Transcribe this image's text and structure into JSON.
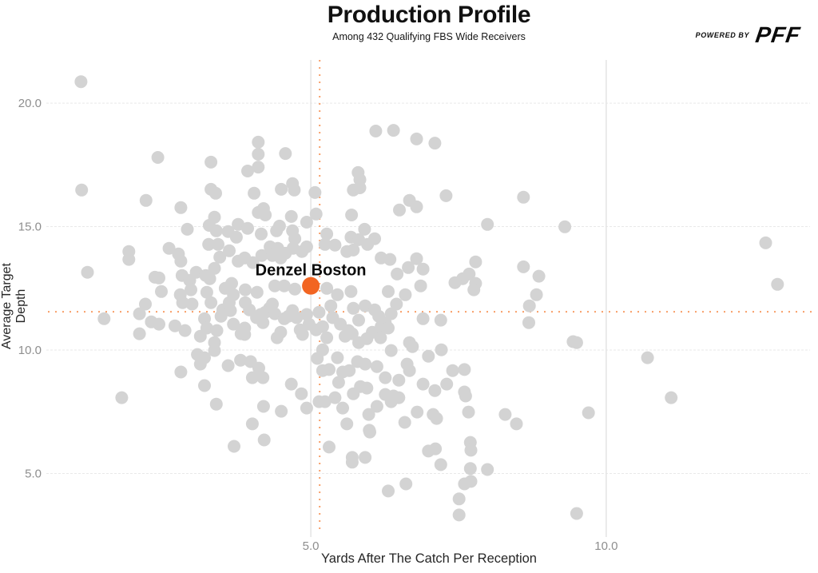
{
  "header": {
    "title": "Production Profile",
    "subtitle": "Among 432 Qualifying FBS Wide Receivers",
    "logo": {
      "powered_by": "POWERED BY",
      "brand": "PFF"
    }
  },
  "colors": {
    "background": "#ffffff",
    "point": "#d3d3d3",
    "highlight": "#f26522",
    "reference_line": "#f89f68",
    "grid": "#e9e9e9",
    "grid_vertical": "#e4e4e4",
    "tick_text": "#8e8e8e",
    "axis_label": "#262626",
    "title_text": "#111111"
  },
  "chart_data": {
    "type": "scatter",
    "title": "Production Profile",
    "subtitle": "Among 432 Qualifying FBS Wide Receivers",
    "xlabel": "Yards After The Catch Per Reception",
    "ylabel": "Average Target Depth",
    "xlim": [
      0.55,
      13.45
    ],
    "ylim": [
      2.75,
      21.75
    ],
    "grid": true,
    "legend": "none",
    "x_ticks": [
      5.0,
      10.0
    ],
    "x_tick_labels": [
      "5.0",
      "10.0"
    ],
    "y_ticks": [
      5.0,
      10.0,
      15.0,
      20.0
    ],
    "y_tick_labels": [
      "5.0",
      "10.0",
      "15.0",
      "20.0"
    ],
    "reference_lines": {
      "x": 5.15,
      "y": 11.55
    },
    "highlight": {
      "label": "Denzel Boston",
      "x": 5.0,
      "y": 12.6
    },
    "points": [
      [
        1.11,
        20.87
      ],
      [
        2.41,
        17.8
      ],
      [
        3.31,
        17.61
      ],
      [
        4.11,
        18.42
      ],
      [
        4.11,
        17.93
      ],
      [
        3.93,
        17.25
      ],
      [
        4.11,
        17.41
      ],
      [
        4.57,
        17.96
      ],
      [
        1.12,
        16.48
      ],
      [
        2.21,
        16.06
      ],
      [
        2.8,
        15.77
      ],
      [
        3.31,
        16.51
      ],
      [
        3.39,
        16.35
      ],
      [
        4.04,
        16.35
      ],
      [
        4.5,
        16.51
      ],
      [
        4.69,
        16.74
      ],
      [
        4.72,
        16.48
      ],
      [
        2.91,
        14.89
      ],
      [
        3.28,
        15.05
      ],
      [
        3.37,
        15.38
      ],
      [
        3.4,
        14.83
      ],
      [
        3.6,
        14.8
      ],
      [
        3.77,
        15.09
      ],
      [
        3.93,
        14.93
      ],
      [
        4.11,
        15.57
      ],
      [
        4.2,
        15.73
      ],
      [
        4.23,
        15.47
      ],
      [
        4.42,
        14.83
      ],
      [
        4.47,
        15.02
      ],
      [
        4.67,
        15.41
      ],
      [
        4.93,
        15.18
      ],
      [
        3.27,
        14.28
      ],
      [
        3.43,
        14.28
      ],
      [
        3.62,
        14.02
      ],
      [
        3.74,
        14.57
      ],
      [
        4.16,
        14.7
      ],
      [
        4.31,
        14.18
      ],
      [
        4.44,
        14.12
      ],
      [
        4.69,
        14.83
      ],
      [
        4.73,
        14.51
      ],
      [
        4.85,
        13.99
      ],
      [
        1.92,
        13.99
      ],
      [
        1.92,
        13.67
      ],
      [
        2.6,
        14.12
      ],
      [
        2.76,
        13.89
      ],
      [
        2.8,
        13.6
      ],
      [
        1.22,
        13.15
      ],
      [
        2.36,
        12.95
      ],
      [
        2.43,
        12.92
      ],
      [
        2.82,
        13.02
      ],
      [
        2.95,
        12.82
      ],
      [
        3.06,
        13.15
      ],
      [
        3.22,
        13.02
      ],
      [
        3.29,
        12.89
      ],
      [
        3.37,
        13.31
      ],
      [
        3.46,
        13.76
      ],
      [
        3.66,
        12.7
      ],
      [
        3.77,
        13.6
      ],
      [
        3.88,
        13.73
      ],
      [
        4.02,
        13.54
      ],
      [
        4.17,
        13.83
      ],
      [
        4.35,
        13.83
      ],
      [
        4.49,
        13.73
      ],
      [
        4.57,
        13.92
      ],
      [
        4.7,
        14.12
      ],
      [
        4.93,
        14.18
      ],
      [
        2.47,
        12.37
      ],
      [
        2.79,
        12.24
      ],
      [
        2.97,
        12.44
      ],
      [
        3.24,
        12.34
      ],
      [
        3.55,
        12.5
      ],
      [
        3.69,
        12.24
      ],
      [
        3.89,
        12.44
      ],
      [
        4.09,
        12.34
      ],
      [
        4.39,
        12.6
      ],
      [
        4.55,
        12.6
      ],
      [
        4.73,
        12.47
      ],
      [
        6.1,
        18.87
      ],
      [
        6.4,
        18.9
      ],
      [
        6.79,
        18.55
      ],
      [
        7.1,
        18.38
      ],
      [
        5.8,
        17.19
      ],
      [
        5.83,
        16.9
      ],
      [
        5.72,
        16.48
      ],
      [
        5.83,
        16.57
      ],
      [
        5.07,
        16.38
      ],
      [
        5.09,
        15.51
      ],
      [
        5.69,
        15.47
      ],
      [
        6.67,
        16.06
      ],
      [
        6.79,
        15.8
      ],
      [
        6.5,
        15.67
      ],
      [
        7.29,
        16.25
      ],
      [
        8.6,
        16.19
      ],
      [
        7.99,
        15.09
      ],
      [
        9.3,
        14.99
      ],
      [
        5.27,
        14.7
      ],
      [
        5.91,
        14.89
      ],
      [
        5.68,
        14.57
      ],
      [
        5.81,
        14.47
      ],
      [
        5.24,
        14.28
      ],
      [
        5.41,
        14.25
      ],
      [
        6.08,
        14.51
      ],
      [
        5.96,
        14.28
      ],
      [
        5.61,
        13.99
      ],
      [
        5.72,
        14.05
      ],
      [
        6.19,
        13.73
      ],
      [
        6.34,
        13.67
      ],
      [
        6.79,
        13.7
      ],
      [
        6.9,
        13.28
      ],
      [
        6.65,
        13.34
      ],
      [
        6.46,
        13.08
      ],
      [
        7.79,
        13.57
      ],
      [
        7.57,
        12.89
      ],
      [
        7.68,
        13.08
      ],
      [
        7.79,
        12.7
      ],
      [
        8.6,
        13.37
      ],
      [
        8.86,
        12.99
      ],
      [
        8.82,
        12.24
      ],
      [
        7.76,
        12.44
      ],
      [
        7.44,
        12.73
      ],
      [
        5.27,
        12.5
      ],
      [
        5.45,
        12.24
      ],
      [
        5.68,
        12.37
      ],
      [
        6.31,
        12.37
      ],
      [
        6.6,
        12.24
      ],
      [
        6.86,
        12.6
      ],
      [
        12.7,
        14.34
      ],
      [
        12.9,
        12.66
      ],
      [
        1.5,
        11.27
      ],
      [
        2.1,
        11.47
      ],
      [
        2.2,
        11.86
      ],
      [
        2.1,
        10.66
      ],
      [
        2.3,
        11.14
      ],
      [
        2.43,
        11.05
      ],
      [
        2.7,
        10.98
      ],
      [
        2.87,
        10.79
      ],
      [
        2.83,
        11.92
      ],
      [
        2.99,
        11.86
      ],
      [
        3.13,
        10.56
      ],
      [
        3.2,
        11.27
      ],
      [
        3.24,
        10.89
      ],
      [
        3.31,
        11.92
      ],
      [
        3.41,
        10.79
      ],
      [
        3.48,
        11.37
      ],
      [
        3.51,
        11.63
      ],
      [
        3.62,
        11.92
      ],
      [
        3.64,
        11.6
      ],
      [
        3.69,
        11.05
      ],
      [
        3.82,
        10.66
      ],
      [
        3.88,
        10.89
      ],
      [
        3.89,
        11.92
      ],
      [
        3.96,
        11.63
      ],
      [
        4.08,
        11.31
      ],
      [
        4.15,
        11.44
      ],
      [
        4.19,
        11.11
      ],
      [
        4.23,
        11.53
      ],
      [
        4.3,
        11.69
      ],
      [
        4.35,
        11.86
      ],
      [
        4.39,
        11.47
      ],
      [
        4.43,
        10.5
      ],
      [
        4.49,
        10.72
      ],
      [
        4.55,
        11.27
      ],
      [
        4.62,
        11.37
      ],
      [
        4.69,
        11.6
      ],
      [
        4.76,
        11.31
      ],
      [
        4.82,
        10.82
      ],
      [
        4.86,
        10.63
      ],
      [
        4.93,
        11.44
      ],
      [
        4.97,
        11.05
      ],
      [
        3.08,
        9.82
      ],
      [
        3.13,
        9.43
      ],
      [
        3.2,
        9.69
      ],
      [
        3.37,
        10.3
      ],
      [
        3.37,
        9.98
      ],
      [
        2.8,
        9.11
      ],
      [
        3.6,
        9.37
      ],
      [
        3.81,
        9.59
      ],
      [
        3.88,
        10.63
      ],
      [
        3.98,
        9.53
      ],
      [
        4.01,
        8.88
      ],
      [
        4.12,
        9.27
      ],
      [
        4.19,
        8.88
      ],
      [
        3.2,
        8.56
      ],
      [
        1.8,
        8.07
      ],
      [
        3.4,
        7.81
      ],
      [
        3.7,
        6.1
      ],
      [
        4.01,
        7.01
      ],
      [
        4.2,
        7.72
      ],
      [
        4.21,
        6.36
      ],
      [
        4.5,
        7.52
      ],
      [
        4.67,
        8.62
      ],
      [
        4.84,
        8.23
      ],
      [
        4.93,
        7.65
      ],
      [
        5.14,
        11.53
      ],
      [
        5.34,
        11.79
      ],
      [
        5.37,
        11.31
      ],
      [
        5.2,
        10.95
      ],
      [
        5.09,
        10.82
      ],
      [
        5.5,
        11.05
      ],
      [
        5.64,
        10.79
      ],
      [
        5.72,
        11.69
      ],
      [
        5.81,
        11.21
      ],
      [
        5.92,
        11.79
      ],
      [
        6.08,
        11.63
      ],
      [
        6.15,
        11.37
      ],
      [
        6.26,
        11.11
      ],
      [
        6.36,
        11.47
      ],
      [
        6.45,
        11.86
      ],
      [
        6.9,
        11.27
      ],
      [
        7.2,
        11.21
      ],
      [
        8.69,
        11.11
      ],
      [
        8.7,
        11.79
      ],
      [
        9.44,
        10.34
      ],
      [
        5.27,
        10.5
      ],
      [
        5.58,
        10.56
      ],
      [
        5.7,
        10.66
      ],
      [
        6.04,
        10.72
      ],
      [
        6.19,
        10.95
      ],
      [
        6.31,
        10.89
      ],
      [
        5.81,
        10.3
      ],
      [
        5.95,
        10.46
      ],
      [
        6.18,
        10.5
      ],
      [
        6.36,
        9.98
      ],
      [
        6.67,
        10.3
      ],
      [
        6.72,
        10.14
      ],
      [
        6.99,
        9.75
      ],
      [
        7.21,
        10.01
      ],
      [
        5.2,
        10.01
      ],
      [
        5.45,
        9.69
      ],
      [
        5.11,
        9.66
      ],
      [
        5.31,
        9.21
      ],
      [
        5.2,
        9.17
      ],
      [
        5.54,
        9.11
      ],
      [
        5.65,
        9.17
      ],
      [
        5.79,
        9.53
      ],
      [
        5.92,
        9.43
      ],
      [
        6.12,
        9.33
      ],
      [
        6.26,
        8.88
      ],
      [
        6.49,
        8.78
      ],
      [
        6.63,
        9.43
      ],
      [
        6.67,
        9.17
      ],
      [
        7.4,
        9.17
      ],
      [
        7.6,
        9.21
      ],
      [
        6.9,
        8.62
      ],
      [
        7.3,
        8.62
      ],
      [
        7.1,
        8.36
      ],
      [
        7.6,
        8.3
      ],
      [
        7.62,
        8.14
      ],
      [
        5.47,
        8.69
      ],
      [
        5.72,
        8.23
      ],
      [
        5.95,
        8.46
      ],
      [
        5.14,
        7.91
      ],
      [
        5.24,
        7.91
      ],
      [
        5.41,
        8.07
      ],
      [
        5.54,
        7.65
      ],
      [
        5.84,
        8.52
      ],
      [
        5.98,
        7.39
      ],
      [
        6.12,
        7.72
      ],
      [
        6.26,
        8.2
      ],
      [
        6.36,
        7.91
      ],
      [
        6.4,
        8.14
      ],
      [
        6.49,
        8.07
      ],
      [
        6.59,
        7.07
      ],
      [
        6.8,
        7.49
      ],
      [
        7.07,
        7.39
      ],
      [
        7.13,
        7.23
      ],
      [
        7.67,
        7.49
      ],
      [
        8.29,
        7.39
      ],
      [
        8.48,
        7.01
      ],
      [
        5.61,
        7.01
      ],
      [
        5.99,
        6.75
      ],
      [
        5.31,
        6.07
      ],
      [
        5.7,
        5.65
      ],
      [
        5.7,
        5.46
      ],
      [
        5.92,
        5.65
      ],
      [
        6.0,
        6.68
      ],
      [
        6.99,
        5.91
      ],
      [
        7.11,
        6.0
      ],
      [
        7.2,
        5.36
      ],
      [
        7.7,
        6.26
      ],
      [
        7.71,
        5.94
      ],
      [
        7.7,
        5.2
      ],
      [
        7.99,
        5.16
      ],
      [
        7.6,
        4.58
      ],
      [
        7.71,
        4.68
      ],
      [
        6.31,
        4.29
      ],
      [
        6.61,
        4.58
      ],
      [
        7.51,
        3.97
      ],
      [
        7.51,
        3.32
      ],
      [
        9.5,
        3.38
      ],
      [
        9.5,
        10.3
      ],
      [
        10.7,
        9.69
      ],
      [
        11.1,
        8.07
      ],
      [
        9.7,
        7.46
      ]
    ]
  }
}
